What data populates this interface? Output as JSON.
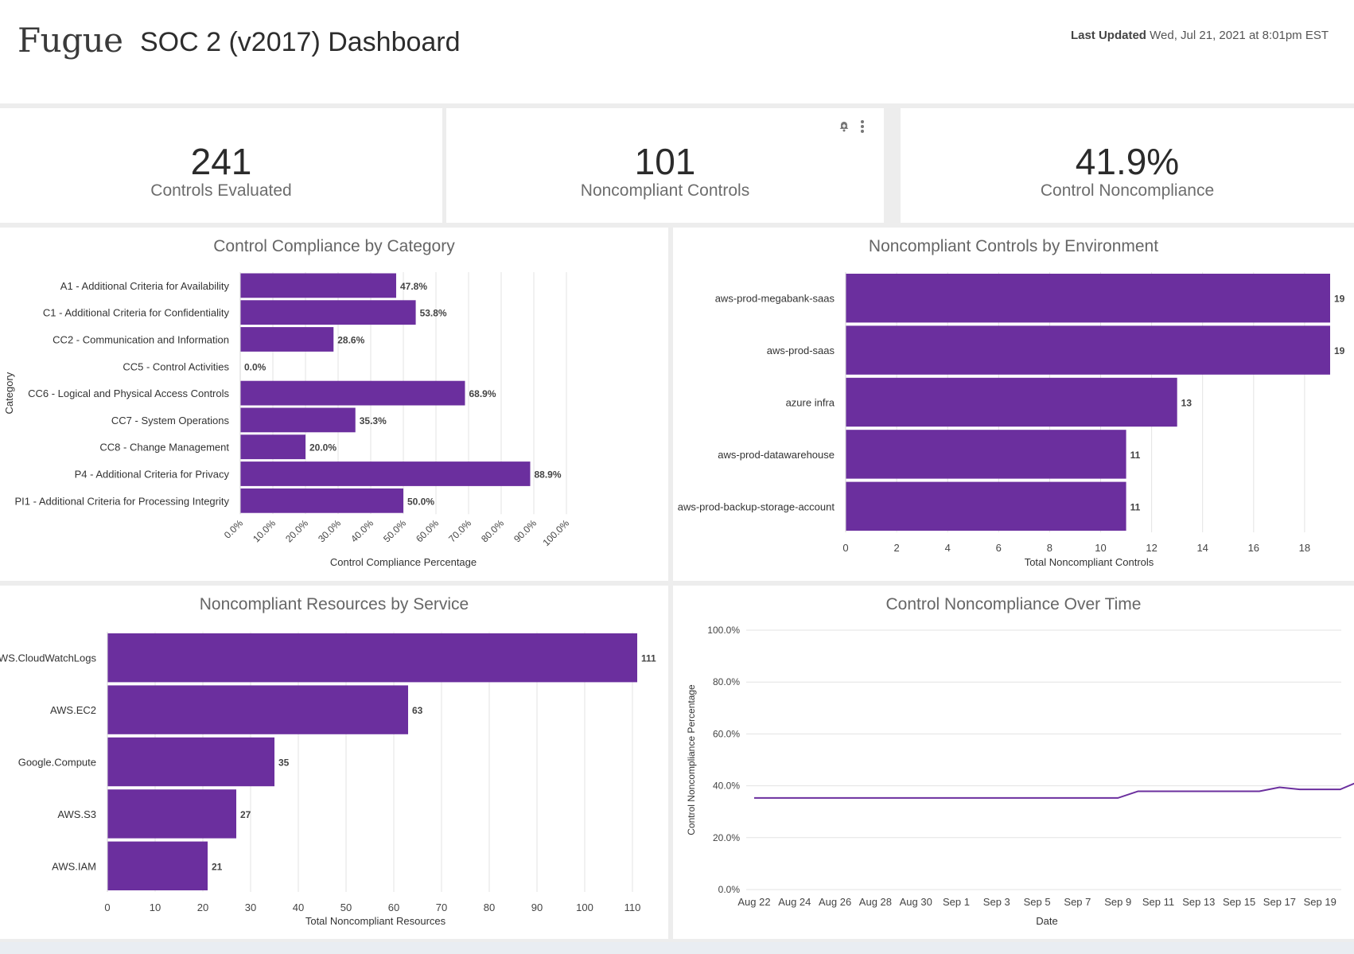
{
  "header": {
    "logo": "Fugue",
    "title": "SOC 2 (v2017) Dashboard",
    "last_updated_label": "Last Updated",
    "last_updated_value": "Wed, Jul 21, 2021 at 8:01pm EST"
  },
  "kpis": [
    {
      "value": "241",
      "label": "Controls Evaluated"
    },
    {
      "value": "101",
      "label": "Noncompliant Controls"
    },
    {
      "value": "41.9%",
      "label": "Control Noncompliance"
    }
  ],
  "colors": {
    "bar": "#6b2f9e",
    "line": "#6b2f9e",
    "grid": "#e3e3e3"
  },
  "icons": {
    "alert": "bell-plus-icon",
    "menu": "kebab-menu-icon"
  },
  "chart_data": [
    {
      "type": "bar",
      "orientation": "horizontal",
      "title": "Control Compliance by Category",
      "xlabel": "Control Compliance Percentage",
      "ylabel": "Category",
      "xlim": [
        0,
        100
      ],
      "xticks": [
        "0.0%",
        "10.0%",
        "20.0%",
        "30.0%",
        "40.0%",
        "50.0%",
        "60.0%",
        "70.0%",
        "80.0%",
        "90.0%",
        "100.0%"
      ],
      "categories": [
        "A1 - Additional Criteria for Availability",
        "C1 - Additional Criteria for Confidentiality",
        "CC2 - Communication and Information",
        "CC5 - Control Activities",
        "CC6 - Logical and Physical Access Controls",
        "CC7 - System Operations",
        "CC8 - Change Management",
        "P4 - Additional Criteria for Privacy",
        "PI1 - Additional Criteria for Processing Integrity"
      ],
      "values": [
        47.8,
        53.8,
        28.6,
        0.0,
        68.9,
        35.3,
        20.0,
        88.9,
        50.0
      ],
      "value_labels": [
        "47.8%",
        "53.8%",
        "28.6%",
        "0.0%",
        "68.9%",
        "35.3%",
        "20.0%",
        "88.9%",
        "50.0%"
      ]
    },
    {
      "type": "bar",
      "orientation": "horizontal",
      "title": "Noncompliant Controls by Environment",
      "xlabel": "Total Noncompliant Controls",
      "ylabel": "",
      "xlim": [
        0,
        19
      ],
      "xticks": [
        "0",
        "2",
        "4",
        "6",
        "8",
        "10",
        "12",
        "14",
        "16",
        "18"
      ],
      "categories": [
        "aws-prod-megabank-saas",
        "aws-prod-saas",
        "azure infra",
        "aws-prod-datawarehouse",
        "aws-prod-backup-storage-account"
      ],
      "values": [
        19,
        19,
        13,
        11,
        11
      ],
      "value_labels": [
        "19",
        "19",
        "13",
        "11",
        "11"
      ]
    },
    {
      "type": "bar",
      "orientation": "horizontal",
      "title": "Noncompliant Resources by Service",
      "xlabel": "Total Noncompliant Resources",
      "ylabel": "",
      "xlim": [
        0,
        111
      ],
      "xticks": [
        "0",
        "10",
        "20",
        "30",
        "40",
        "50",
        "60",
        "70",
        "80",
        "90",
        "100",
        "110"
      ],
      "categories": [
        "AWS.CloudWatchLogs",
        "AWS.EC2",
        "Google.Compute",
        "AWS.S3",
        "AWS.IAM"
      ],
      "values": [
        111,
        63,
        35,
        27,
        21
      ],
      "value_labels": [
        "111",
        "63",
        "35",
        "27",
        "21"
      ]
    },
    {
      "type": "line",
      "title": "Control Noncompliance Over Time",
      "xlabel": "Date",
      "ylabel": "Control Noncompliance Percentage",
      "ylim": [
        0,
        100
      ],
      "yticks": [
        "0.0%",
        "20.0%",
        "40.0%",
        "60.0%",
        "80.0%",
        "100.0%"
      ],
      "xlim": [
        0,
        29
      ],
      "xticks": [
        "Aug 22",
        "Aug 24",
        "Aug 26",
        "Aug 28",
        "Aug 30",
        "Sep 1",
        "Sep 3",
        "Sep 5",
        "Sep 7",
        "Sep 9",
        "Sep 11",
        "Sep 13",
        "Sep 15",
        "Sep 17",
        "Sep 19"
      ],
      "series": [
        {
          "name": "Control Noncompliance",
          "x": [
            0,
            18,
            19,
            25,
            26,
            27,
            29,
            30
          ],
          "y": [
            35.3,
            35.3,
            37.9,
            37.9,
            39.4,
            38.6,
            38.6,
            41.9
          ]
        }
      ]
    }
  ]
}
